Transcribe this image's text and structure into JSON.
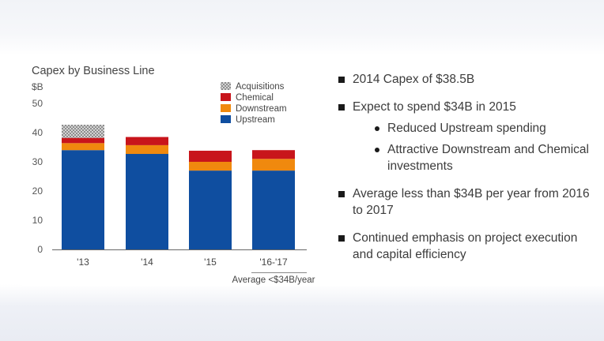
{
  "chart_data": {
    "type": "bar",
    "stacked": true,
    "title": "Capex by Business Line",
    "ylabel": "$B",
    "ylim": [
      0,
      50
    ],
    "yticks": [
      0,
      10,
      20,
      30,
      40,
      50
    ],
    "categories": [
      "'13",
      "'14",
      "'15",
      "'16-'17"
    ],
    "series": [
      {
        "name": "Upstream",
        "color": "#0f4ea0",
        "values": [
          34.0,
          32.7,
          27.0,
          27.0
        ]
      },
      {
        "name": "Downstream",
        "color": "#f0890e",
        "values": [
          2.4,
          3.0,
          3.0,
          4.0
        ]
      },
      {
        "name": "Chemical",
        "color": "#c8151b",
        "values": [
          1.8,
          2.8,
          3.8,
          3.0
        ]
      },
      {
        "name": "Acquisitions",
        "color": "#9a9a9a",
        "pattern": "checker",
        "values": [
          4.5,
          0,
          0,
          0
        ]
      }
    ],
    "legend_order": [
      "Acquisitions",
      "Chemical",
      "Downstream",
      "Upstream"
    ],
    "legend_position": "top-right",
    "annotation": "Average <$34B/year"
  },
  "bullets": [
    {
      "text": "2014 Capex of $38.5B"
    },
    {
      "text": "Expect to spend $34B in 2015",
      "sub": [
        "Reduced Upstream spending",
        "Attractive Downstream and Chemical investments"
      ]
    },
    {
      "text": "Average less than $34B per year from 2016 to 2017"
    },
    {
      "text": "Continued emphasis on project execution and capital efficiency"
    }
  ]
}
